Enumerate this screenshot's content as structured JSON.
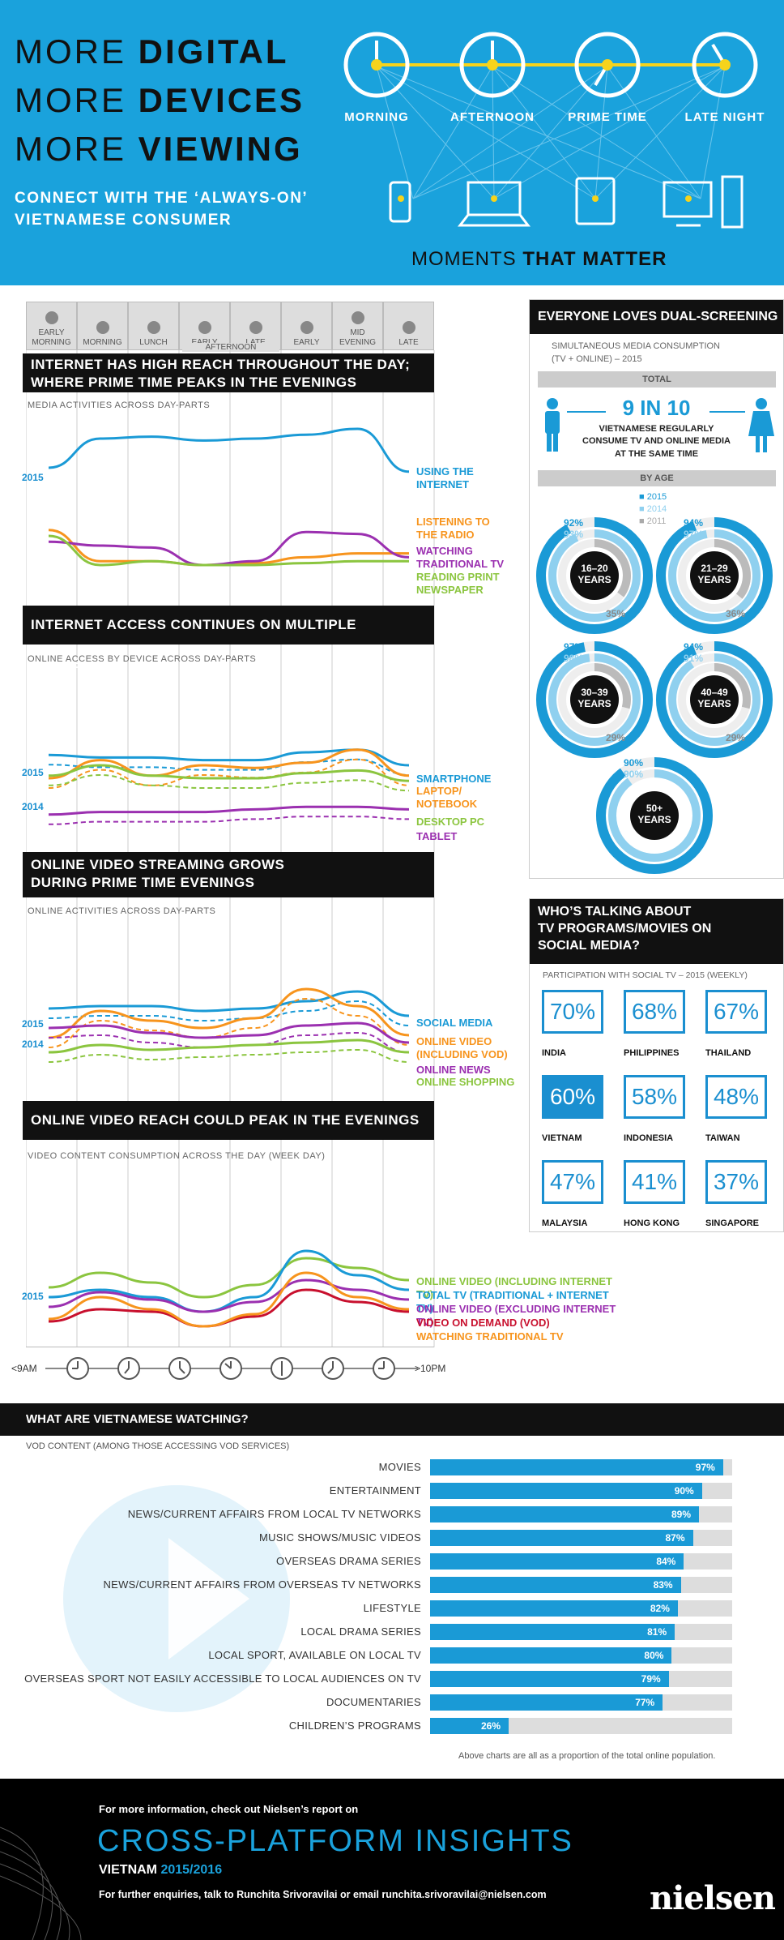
{
  "header": {
    "line1_light": "MORE ",
    "line1_bold": "DIGITAL",
    "line2_light": "MORE ",
    "line2_bold": "DEVICES",
    "line3_light": "MORE ",
    "line3_bold": "VIEWING",
    "subtitle1": "CONNECT WITH THE ‘ALWAYS-ON’",
    "subtitle2": "VIETNAMESE CONSUMER",
    "clocks": [
      "MORNING",
      "AFTERNOON",
      "PRIME TIME",
      "LATE NIGHT"
    ],
    "moments_light": "MOMENTS ",
    "moments_bold": "THAT MATTER"
  },
  "dayparts": [
    {
      "l1": "EARLY",
      "l2": "MORNING"
    },
    {
      "l1": "",
      "l2": "MORNING"
    },
    {
      "l1": "",
      "l2": "LUNCH"
    },
    {
      "l1": "EARLY",
      "l2": ""
    },
    {
      "l1": "LATE",
      "l2": ""
    },
    {
      "l1": "",
      "l2": "EARLY"
    },
    {
      "l1": "MID",
      "l2": "EVENING"
    },
    {
      "l1": "",
      "l2": "LATE"
    }
  ],
  "afternoon_label": "AFTERNOON",
  "sections": {
    "s1_title1": "INTERNET HAS HIGH REACH THROUGHOUT THE DAY;",
    "s1_title2": "WHERE PRIME TIME PEAKS IN THE EVENINGS",
    "s1_sub": "MEDIA ACTIVITIES ACROSS DAY-PARTS",
    "s2_title": "INTERNET ACCESS CONTINUES ON MULTIPLE SCREENS",
    "s2_sub": "ONLINE ACCESS BY DEVICE ACROSS DAY-PARTS",
    "s3_title1": "ONLINE VIDEO STREAMING GROWS",
    "s3_title2": "DURING PRIME TIME EVENINGS",
    "s3_sub": "ONLINE ACTIVITIES ACROSS DAY-PARTS",
    "s4_title": "ONLINE VIDEO REACH COULD PEAK IN THE EVENINGS",
    "s4_sub": "VIDEO CONTENT CONSUMPTION ACROSS THE DAY (WEEK DAY)",
    "time_start": "<9AM",
    "time_end": ">10PM",
    "yr2015": "2015",
    "yr2014": "2014"
  },
  "chart_data": [
    {
      "type": "line",
      "title": "INTERNET HAS HIGH REACH THROUGHOUT THE DAY; WHERE PRIME TIME PEAKS IN THE EVENINGS",
      "series": [
        {
          "name": "USING THE INTERNET",
          "color": "#1a9ad6",
          "values": [
            70,
            85,
            86,
            84,
            85,
            87,
            90,
            68
          ]
        },
        {
          "name": "LISTENING TO THE RADIO",
          "color": "#f7941d",
          "values": [
            38,
            22,
            22,
            20,
            21,
            24,
            26,
            26
          ]
        },
        {
          "name": "WATCHING TRADITIONAL TV",
          "color": "#9b30b0",
          "values": [
            32,
            30,
            29,
            20,
            22,
            37,
            36,
            24
          ]
        },
        {
          "name": "READING PRINT NEWSPAPER",
          "color": "#8bc53f",
          "values": [
            35,
            20,
            22,
            20,
            20,
            21,
            22,
            22
          ]
        }
      ]
    },
    {
      "type": "line",
      "title": "INTERNET ACCESS CONTINUES ON MULTIPLE SCREENS",
      "series": [
        {
          "name": "SMARTPHONE",
          "color": "#1a9ad6",
          "values": [
            68,
            66,
            66,
            64,
            64,
            70,
            72,
            60
          ]
        },
        {
          "name": "LAPTOP/ NOTEBOOK",
          "color": "#f7941d",
          "values": [
            50,
            64,
            52,
            60,
            58,
            62,
            72,
            52
          ]
        },
        {
          "name": "DESKTOP PC",
          "color": "#8bc53f",
          "values": [
            52,
            60,
            52,
            50,
            50,
            54,
            56,
            48
          ]
        },
        {
          "name": "TABLET",
          "color": "#9b30b0",
          "values": [
            22,
            24,
            24,
            24,
            26,
            28,
            28,
            26
          ]
        }
      ]
    },
    {
      "type": "line",
      "title": "ONLINE VIDEO STREAMING GROWS DURING PRIME TIME EVENINGS",
      "series": [
        {
          "name": "SOCIAL MEDIA",
          "color": "#1a9ad6",
          "values": [
            64,
            66,
            66,
            62,
            64,
            70,
            78,
            58
          ]
        },
        {
          "name": "ONLINE VIDEO (INCLUDING VOD)",
          "color": "#f7941d",
          "values": [
            40,
            62,
            54,
            48,
            56,
            80,
            66,
            42
          ]
        },
        {
          "name": "ONLINE NEWS",
          "color": "#9b30b0",
          "values": [
            48,
            50,
            44,
            40,
            42,
            50,
            52,
            36
          ]
        },
        {
          "name": "ONLINE SHOPPING",
          "color": "#8bc53f",
          "values": [
            28,
            34,
            30,
            32,
            34,
            36,
            38,
            28
          ]
        }
      ]
    },
    {
      "type": "line",
      "title": "ONLINE VIDEO REACH COULD PEAK IN THE EVENINGS",
      "series": [
        {
          "name": "ONLINE VIDEO (INCLUDING INTERNET TV)",
          "color": "#8bc53f",
          "values": [
            48,
            60,
            52,
            40,
            50,
            72,
            64,
            54
          ]
        },
        {
          "name": "TOTAL TV (TRADITIONAL + INTERNET TV)",
          "color": "#1a9ad6",
          "values": [
            40,
            46,
            40,
            28,
            40,
            78,
            58,
            46
          ]
        },
        {
          "name": "ONLINE VIDEO (EXCLUDING INTERNET TV)",
          "color": "#9b30b0",
          "values": [
            32,
            44,
            38,
            28,
            36,
            54,
            46,
            38
          ]
        },
        {
          "name": "VIDEO ON DEMAND (VOD)",
          "color": "#c8102e",
          "values": [
            20,
            30,
            28,
            16,
            24,
            46,
            36,
            28
          ]
        },
        {
          "name": "WATCHING TRADITIONAL TV",
          "color": "#f7941d",
          "values": [
            22,
            40,
            30,
            16,
            26,
            60,
            40,
            30
          ]
        }
      ]
    },
    {
      "type": "bar",
      "title": "WHAT ARE VIETNAMESE WATCHING?",
      "categories": [
        "MOVIES",
        "ENTERTAINMENT",
        "NEWS/CURRENT AFFAIRS FROM LOCAL TV NETWORKS",
        "MUSIC SHOWS/MUSIC VIDEOS",
        "OVERSEAS DRAMA SERIES",
        "NEWS/CURRENT AFFAIRS FROM OVERSEAS TV NETWORKS",
        "LIFESTYLE",
        "LOCAL DRAMA SERIES",
        "LOCAL SPORT, AVAILABLE ON LOCAL TV",
        "OVERSEAS SPORT NOT EASILY ACCESSIBLE TO LOCAL AUDIENCES ON TV",
        "DOCUMENTARIES",
        "CHILDREN’S PROGRAMS"
      ],
      "values": [
        97,
        90,
        89,
        87,
        84,
        83,
        82,
        81,
        80,
        79,
        77,
        26
      ],
      "labels": [
        "97%",
        "90%",
        "89%",
        "87%",
        "84%",
        "83%",
        "82%",
        "81%",
        "80%",
        "79%",
        "77%",
        "26%"
      ],
      "ylim": [
        0,
        100
      ]
    }
  ],
  "dual": {
    "title": "EVERYONE LOVES DUAL-SCREENING",
    "sub1": "SIMULTANEOUS MEDIA CONSUMPTION",
    "sub2": "(TV + ONLINE) – 2015",
    "total": "TOTAL",
    "nine": "9 IN 10",
    "desc1": "VIETNAMESE REGULARLY",
    "desc2": "CONSUME TV AND ONLINE MEDIA",
    "desc3": "AT THE SAME TIME",
    "byage": "BY AGE",
    "legend": [
      "2015",
      "2014",
      "2011"
    ],
    "rings": [
      {
        "l1": "16–20",
        "l2": "YEARS",
        "v2015": 92,
        "v2014": 93,
        "v2011": 35,
        "p2015": "92%",
        "p2014": "93%",
        "p2011": "35%"
      },
      {
        "l1": "21–29",
        "l2": "YEARS",
        "v2015": 94,
        "v2014": 97,
        "v2011": 36,
        "p2015": "94%",
        "p2014": "97%",
        "p2011": "36%"
      },
      {
        "l1": "30–39",
        "l2": "YEARS",
        "v2015": 97,
        "v2014": 98,
        "v2011": 29,
        "p2015": "97%",
        "p2014": "98%",
        "p2011": "29%"
      },
      {
        "l1": "40–49",
        "l2": "YEARS",
        "v2015": 94,
        "v2014": 91,
        "v2011": 29,
        "p2015": "94%",
        "p2014": "91%",
        "p2011": "29%"
      },
      {
        "l1": "50+",
        "l2": "YEARS",
        "v2015": 90,
        "v2014": 90,
        "v2011": null,
        "p2015": "90%",
        "p2014": "90%",
        "p2011": ""
      }
    ]
  },
  "social": {
    "title1": "WHO’S TALKING ABOUT",
    "title2": "TV PROGRAMS/MOVIES ON",
    "title3": "SOCIAL MEDIA?",
    "sub": "PARTICIPATION WITH SOCIAL TV – 2015 (WEEKLY)",
    "countries": [
      {
        "name": "INDIA",
        "pct": "70%"
      },
      {
        "name": "PHILIPPINES",
        "pct": "68%"
      },
      {
        "name": "THAILAND",
        "pct": "67%"
      },
      {
        "name": "VIETNAM",
        "pct": "60%"
      },
      {
        "name": "INDONESIA",
        "pct": "58%"
      },
      {
        "name": "TAIWAN",
        "pct": "48%"
      },
      {
        "name": "MALAYSIA",
        "pct": "47%"
      },
      {
        "name": "HONG KONG",
        "pct": "41%"
      },
      {
        "name": "SINGAPORE",
        "pct": "37%"
      }
    ]
  },
  "watching": {
    "title": "WHAT ARE VIETNAMESE WATCHING?",
    "sub": "VOD CONTENT (AMONG THOSE ACCESSING VOD SERVICES)",
    "note": "Above charts are all as a proportion of the total online population."
  },
  "footer": {
    "more": "For more information, check out Nielsen’s report on",
    "big": "CROSS-PLATFORM INSIGHTS",
    "country": "VIETNAM ",
    "years": "2015/2016",
    "enquiries": "For further enquiries, talk to Runchita Srivoravilai or email runchita.srivoravilai@nielsen.com",
    "logo": "nielsen"
  },
  "colors": {
    "brand_blue": "#1aa2dc",
    "black": "#111111"
  }
}
